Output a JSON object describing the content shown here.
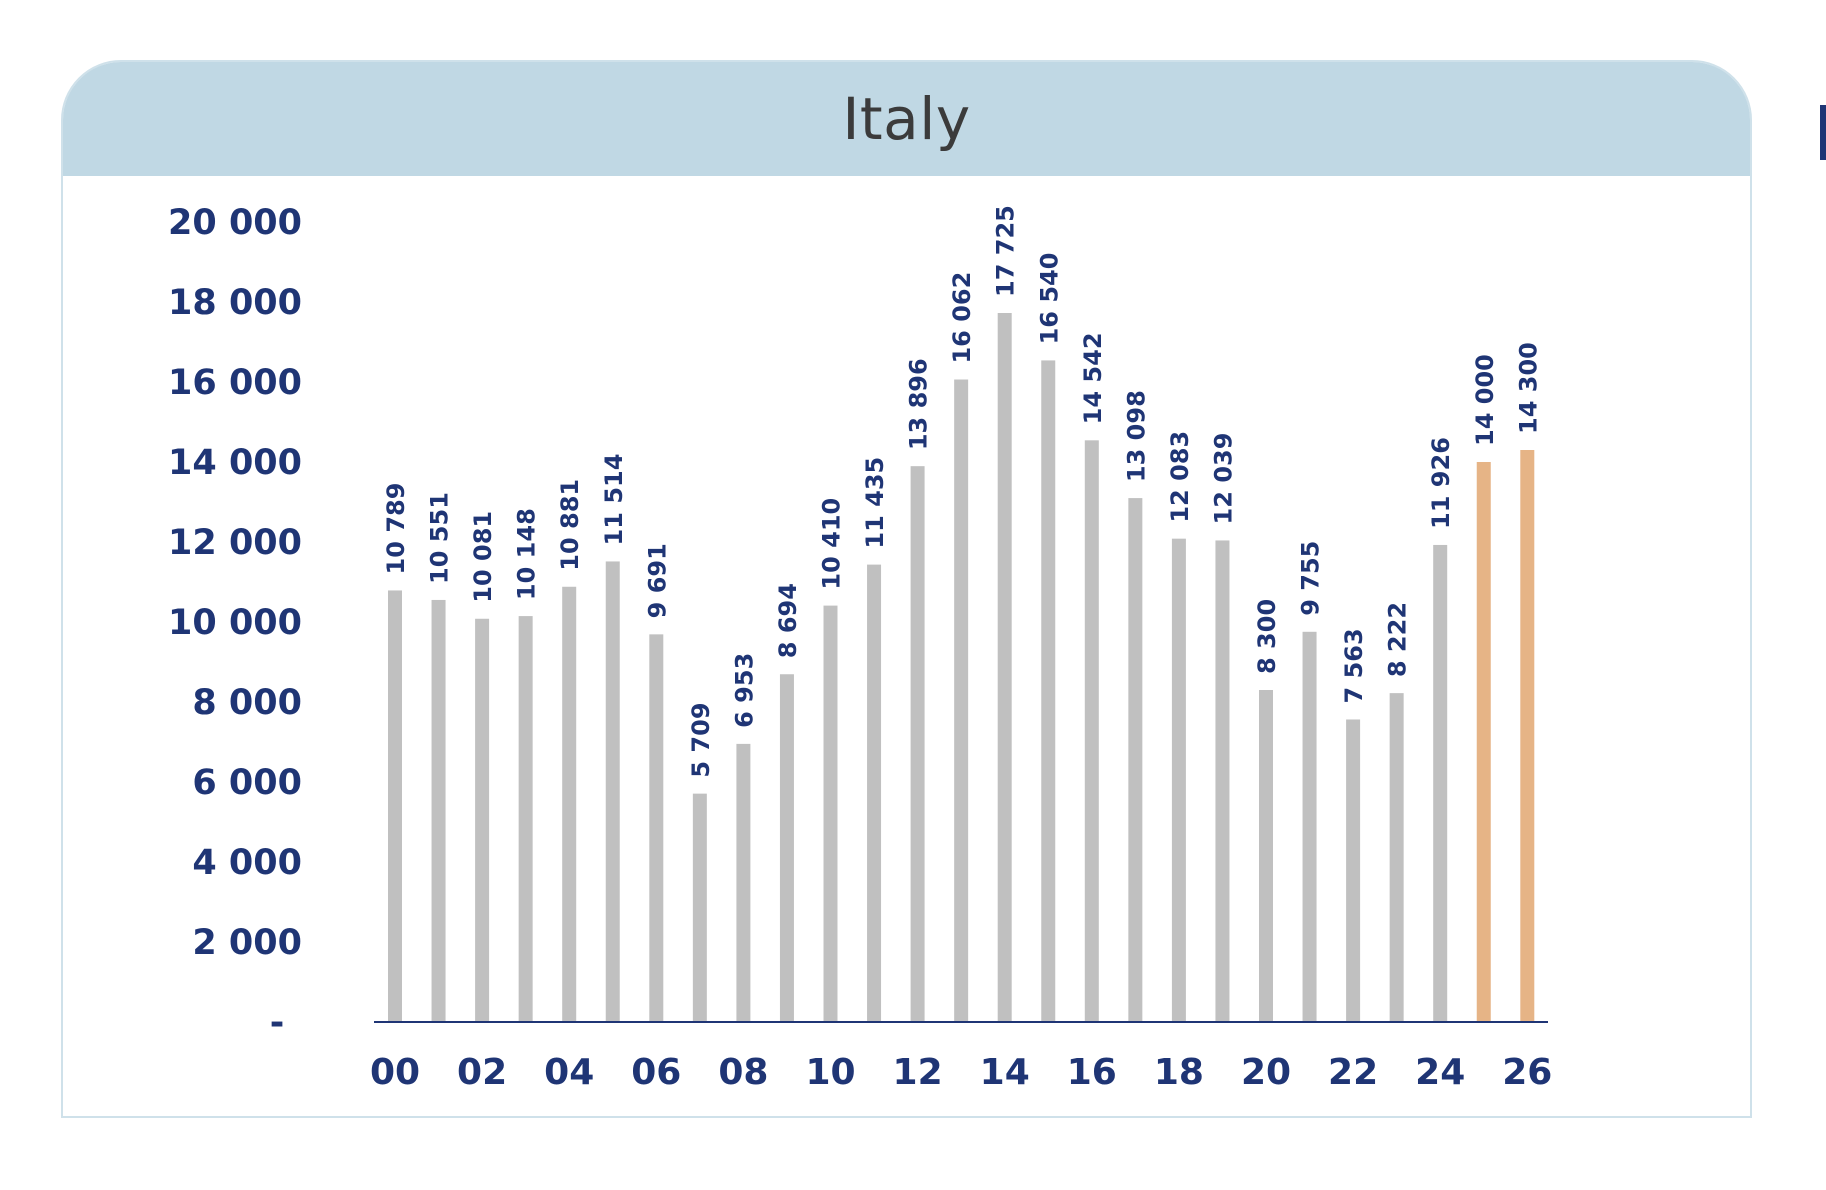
{
  "title": "Italy",
  "colors": {
    "header_bg": "#c0d8e4",
    "actual_bar": "#c0c0c0",
    "forecast_bar": "#e6b486",
    "axis_text": "#1f3575"
  },
  "chart_data": {
    "type": "bar",
    "title": "Italy",
    "xlabel": "",
    "ylabel": "",
    "ylim": [
      0,
      20000
    ],
    "yticks": [
      0,
      2000,
      4000,
      6000,
      8000,
      10000,
      12000,
      14000,
      16000,
      18000,
      20000
    ],
    "ytick_labels": [
      "-",
      "2 000",
      "4 000",
      "6 000",
      "8 000",
      "10 000",
      "12 000",
      "14 000",
      "16 000",
      "18 000",
      "20 000"
    ],
    "categories": [
      "00",
      "01",
      "02",
      "03",
      "04",
      "05",
      "06",
      "07",
      "08",
      "09",
      "10",
      "11",
      "12",
      "13",
      "14",
      "15",
      "16",
      "17",
      "18",
      "19",
      "20",
      "21",
      "22",
      "23",
      "24",
      "25",
      "26"
    ],
    "xtick_labels": [
      "00",
      "02",
      "04",
      "06",
      "08",
      "10",
      "12",
      "14",
      "16",
      "18",
      "20",
      "22",
      "24",
      "26"
    ],
    "values": [
      10789,
      10551,
      10081,
      10148,
      10881,
      11514,
      9691,
      5709,
      6953,
      8694,
      10410,
      11435,
      13896,
      16062,
      17725,
      16540,
      14542,
      13098,
      12083,
      12039,
      8300,
      9755,
      7563,
      8222,
      11926,
      14000,
      14300
    ],
    "value_labels": [
      "10 789",
      "10 551",
      "10 081",
      "10 148",
      "10 881",
      "11 514",
      "9 691",
      "5 709",
      "6 953",
      "8 694",
      "10 410",
      "11 435",
      "13 896",
      "16 062",
      "17 725",
      "16 540",
      "14 542",
      "13 098",
      "12 083",
      "12 039",
      "8 300",
      "9 755",
      "7 563",
      "8 222",
      "11 926",
      "14 000",
      "14 300"
    ],
    "forecast": [
      false,
      false,
      false,
      false,
      false,
      false,
      false,
      false,
      false,
      false,
      false,
      false,
      false,
      false,
      false,
      false,
      false,
      false,
      false,
      false,
      false,
      false,
      false,
      false,
      false,
      true,
      true
    ],
    "grid": false,
    "legend": "none"
  }
}
